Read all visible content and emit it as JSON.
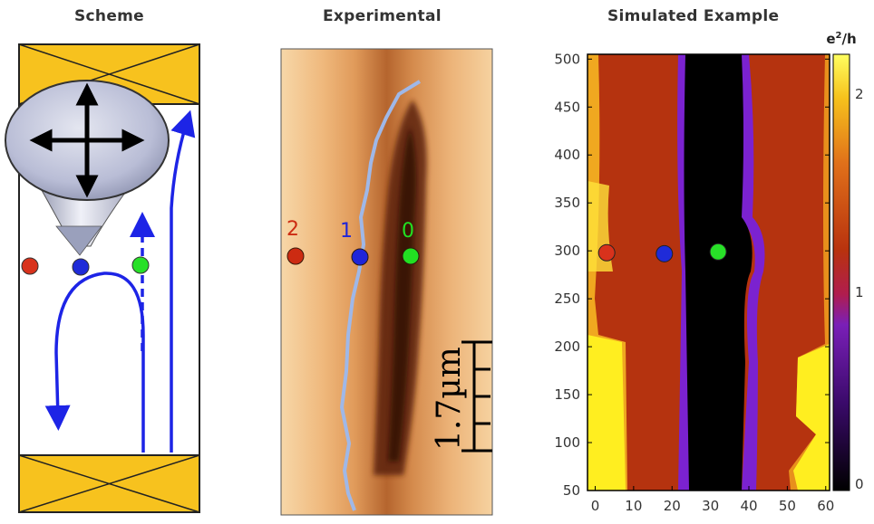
{
  "panels": {
    "scheme": {
      "title": "Scheme"
    },
    "experimental": {
      "title": "Experimental",
      "markers": [
        {
          "label": "2",
          "color": "#cc2b12"
        },
        {
          "label": "1",
          "color": "#1f25d8"
        },
        {
          "label": "0",
          "color": "#22e022"
        }
      ],
      "scalebar": "1.7µm"
    },
    "simulated": {
      "title": "Simulated Example"
    }
  },
  "colors": {
    "red_dot": "#d8321c",
    "blue_dot": "#1f2bd8",
    "green_dot": "#28e028",
    "arrow_blue": "#1d24e6",
    "track": "#9fb8e8",
    "gold": "#f7c21e"
  },
  "chart_data": {
    "type": "heatmap",
    "title": "Simulated Example",
    "x_ticks": [
      0,
      10,
      20,
      30,
      40,
      50,
      60
    ],
    "y_ticks": [
      50,
      100,
      150,
      200,
      250,
      300,
      350,
      400,
      450,
      500
    ],
    "xlim": [
      -2,
      61
    ],
    "ylim": [
      50,
      505
    ],
    "colorbar": {
      "label": "e²/h",
      "ticks": [
        0,
        1,
        2
      ],
      "range": [
        0,
        2.2
      ]
    },
    "markers": [
      {
        "x": 3,
        "y": 298,
        "color": "#d8321c"
      },
      {
        "x": 18,
        "y": 297,
        "color": "#1f2bd8"
      },
      {
        "x": 32,
        "y": 299,
        "color": "#28e028"
      }
    ]
  }
}
